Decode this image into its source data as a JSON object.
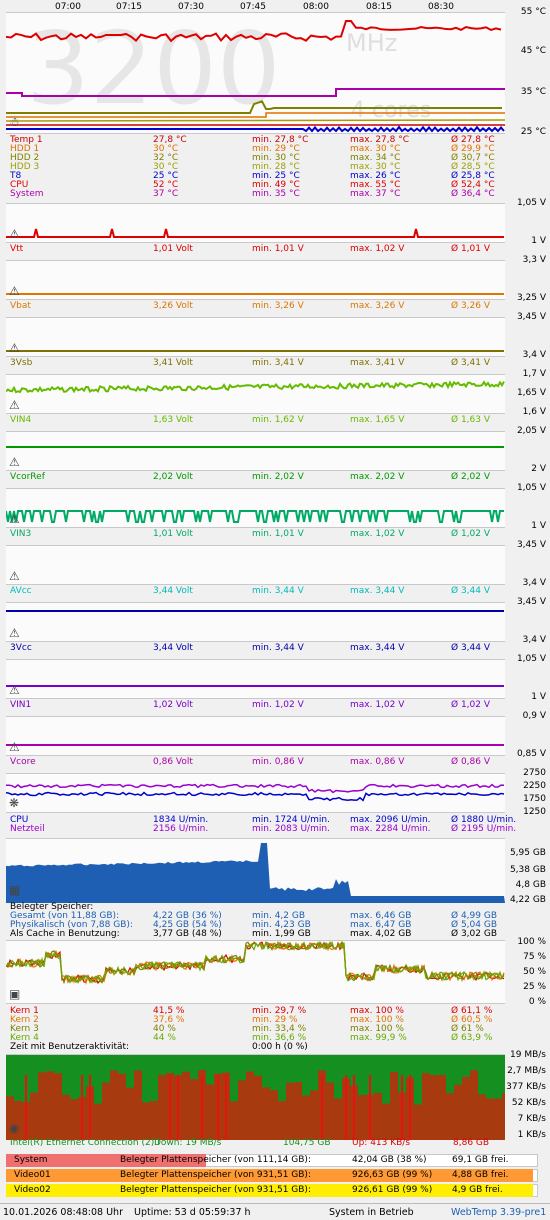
{
  "time_axis": [
    "07:00",
    "07:15",
    "07:30",
    "07:45",
    "08:00",
    "08:15",
    "08:30"
  ],
  "temps": {
    "axis": [
      "55 °C",
      "45 °C",
      "35 °C",
      "25 °C"
    ],
    "watermark": "3200",
    "mhz": "MHz",
    "cores": "4 cores",
    "rows": [
      {
        "name": "Temp 1",
        "cur": "27,8 °C",
        "min": "min. 27,8 °C",
        "max": "max. 27,8 °C",
        "avg": "Ø 27,8 °C",
        "color": "#cc0000"
      },
      {
        "name": "HDD 1",
        "cur": "30 °C",
        "min": "min. 29 °C",
        "max": "max. 30 °C",
        "avg": "Ø 29,9 °C",
        "color": "#e07000"
      },
      {
        "name": "HDD 2",
        "cur": "32 °C",
        "min": "min. 30 °C",
        "max": "max. 34 °C",
        "avg": "Ø 30,7 °C",
        "color": "#808000"
      },
      {
        "name": "HDD 3",
        "cur": "30 °C",
        "min": "min. 28 °C",
        "max": "max. 30 °C",
        "avg": "Ø 28,5 °C",
        "color": "#a0a000"
      },
      {
        "name": "T8",
        "cur": "25 °C",
        "min": "min. 25 °C",
        "max": "max. 26 °C",
        "avg": "Ø 25,8 °C",
        "color": "#0000cc"
      },
      {
        "name": "CPU",
        "cur": "52 °C",
        "min": "min. 49 °C",
        "max": "max. 55 °C",
        "avg": "Ø 52,4 °C",
        "color": "#dd0000"
      },
      {
        "name": "System",
        "cur": "37 °C",
        "min": "min. 35 °C",
        "max": "max. 37 °C",
        "avg": "Ø 36,4 °C",
        "color": "#aa00aa"
      }
    ]
  },
  "volts": [
    {
      "top": "1,05 V",
      "bottom": "1 V",
      "name": "Vtt",
      "cur": "1,01 Volt",
      "min": "min. 1,01 V",
      "max": "max. 1,02 V",
      "avg": "Ø 1,01 V",
      "color": "#dd0000"
    },
    {
      "top": "3,3 V",
      "bottom": "3,25 V",
      "name": "Vbat",
      "cur": "3,26 Volt",
      "min": "min. 3,26 V",
      "max": "max. 3,26 V",
      "avg": "Ø 3,26 V",
      "color": "#dd7700"
    },
    {
      "top": "3,45 V",
      "bottom": "3,4 V",
      "name": "3Vsb",
      "cur": "3,41 Volt",
      "min": "min. 3,41 V",
      "max": "max. 3,41 V",
      "avg": "Ø 3,41 V",
      "color": "#807000"
    },
    {
      "top": "1,7 V",
      "mid": "1,65 V",
      "bottom": "1,6 V",
      "name": "VIN4",
      "cur": "1,63 Volt",
      "min": "min. 1,62 V",
      "max": "max. 1,65 V",
      "avg": "Ø 1,63 V",
      "color": "#66bb00"
    },
    {
      "top": "2,05 V",
      "bottom": "2 V",
      "name": "VcorRef",
      "cur": "2,02 Volt",
      "min": "min. 2,02 V",
      "max": "max. 2,02 V",
      "avg": "Ø 2,02 V",
      "color": "#009900"
    },
    {
      "top": "1,05 V",
      "bottom": "1 V",
      "name": "VIN3",
      "cur": "1,01 Volt",
      "min": "min. 1,01 V",
      "max": "max. 1,02 V",
      "avg": "Ø 1,02 V",
      "color": "#00aa66"
    },
    {
      "top": "3,45 V",
      "bottom": "3,4 V",
      "name": "AVcc",
      "cur": "3,44 Volt",
      "min": "min. 3,44 V",
      "max": "max. 3,44 V",
      "avg": "Ø 3,44 V",
      "color": "#00bbbb"
    },
    {
      "top": "3,45 V",
      "bottom": "3,4 V",
      "name": "3Vcc",
      "cur": "3,44 Volt",
      "min": "min. 3,44 V",
      "max": "max. 3,44 V",
      "avg": "Ø 3,44 V",
      "color": "#0000aa"
    },
    {
      "top": "1,05 V",
      "bottom": "1 V",
      "name": "VIN1",
      "cur": "1,02 Volt",
      "min": "min. 1,02 V",
      "max": "max. 1,02 V",
      "avg": "Ø 1,02 V",
      "color": "#7700cc"
    },
    {
      "top": "0,9 V",
      "bottom": "0,85 V",
      "name": "Vcore",
      "cur": "0,86 Volt",
      "min": "min. 0,86 V",
      "max": "max. 0,86 V",
      "avg": "Ø 0,86 V",
      "color": "#aa00aa"
    }
  ],
  "fans": {
    "axis": [
      "2750",
      "2250",
      "1750",
      "1250"
    ],
    "rows": [
      {
        "name": "CPU",
        "cur": "1834 U/min.",
        "min": "min. 1724 U/min.",
        "max": "max. 2096 U/min.",
        "avg": "Ø 1880 U/min.",
        "color": "#0000cc"
      },
      {
        "name": "Netzteil",
        "cur": "2156 U/min.",
        "min": "min. 2083 U/min.",
        "max": "max. 2284 U/min.",
        "avg": "Ø 2195 U/min.",
        "color": "#9900cc"
      }
    ]
  },
  "memory": {
    "axis": [
      "5,95 GB",
      "5,38 GB",
      "4,8 GB",
      "4,22 GB"
    ],
    "title": "Belegter Speicher:",
    "rows": [
      {
        "name": "Gesamt (von 11,88 GB):",
        "cur": "4,22 GB (36 %)",
        "min": "min. 4,2 GB",
        "max": "max. 6,46 GB",
        "avg": "Ø 4,99 GB"
      },
      {
        "name": "Physikalisch (von 7,88 GB):",
        "cur": "4,25 GB (54 %)",
        "min": "min. 4,23 GB",
        "max": "max. 6,47 GB",
        "avg": "Ø 5,04 GB"
      },
      {
        "name": "Als Cache in Benutzung:",
        "cur": "3,77 GB (48 %)",
        "min": "min. 1,99 GB",
        "max": "max. 4,02 GB",
        "avg": "Ø 3,02 GB"
      }
    ]
  },
  "cpu": {
    "axis": [
      "100 %",
      "75 %",
      "50 %",
      "25 %",
      "0 %"
    ],
    "rows": [
      {
        "name": "Kern 1",
        "cur": "41,5 %",
        "min": "min. 29,7 %",
        "max": "max. 100 %",
        "avg": "Ø 61,1 %",
        "color": "#dd0000"
      },
      {
        "name": "Kern 2",
        "cur": "37,6 %",
        "min": "min. 29 %",
        "max": "max. 100 %",
        "avg": "Ø 60,5 %",
        "color": "#dd7700"
      },
      {
        "name": "Kern 3",
        "cur": "40 %",
        "min": "min. 33,4 %",
        "max": "max. 100 %",
        "avg": "Ø 61 %",
        "color": "#808000"
      },
      {
        "name": "Kern 4",
        "cur": "44 %",
        "min": "min. 36,6 %",
        "max": "max. 99,9 %",
        "avg": "Ø 63,9 %",
        "color": "#66aa00"
      }
    ],
    "activity_label": "Zeit mit Benutzeraktivität:",
    "activity_value": "0:00 h  (0 %)"
  },
  "net": {
    "axis": [
      "19 MB/s",
      "2,7 MB/s",
      "377 KB/s",
      "52 KB/s",
      "7 KB/s",
      "1 KB/s"
    ],
    "name": "Intel(R) Ethernet Connection (2) I",
    "down": "Down: 19 MB/s",
    "down_total": "104,75 GB",
    "up": "Up: 413 KB/s",
    "up_total": "8,86 GB"
  },
  "disks": [
    {
      "name": "System",
      "label": "Belegter Plattenspeicher (von 111,14 GB):",
      "used": "42,04 GB (38 %)",
      "free": "69,1 GB frei.",
      "color": "#f07070",
      "fill": 0.38
    },
    {
      "name": "Video01",
      "label": "Belegter Plattenspeicher (von 931,51 GB):",
      "used": "926,63 GB (99 %)",
      "free": "4,88 GB frei.",
      "color": "#ff9933",
      "fill": 0.99
    },
    {
      "name": "Video02",
      "label": "Belegter Plattenspeicher (von 931,51 GB):",
      "used": "926,61 GB (99 %)",
      "free": "4,9 GB frei.",
      "color": "#ffee00",
      "fill": 0.99
    }
  ],
  "status": {
    "datetime": "10.01.2026 08:48:08 Uhr",
    "uptime": "Uptime: 53 d 05:59:37 h",
    "state": "System in Betrieb",
    "app": "WebTemp 3.39-pre1"
  }
}
